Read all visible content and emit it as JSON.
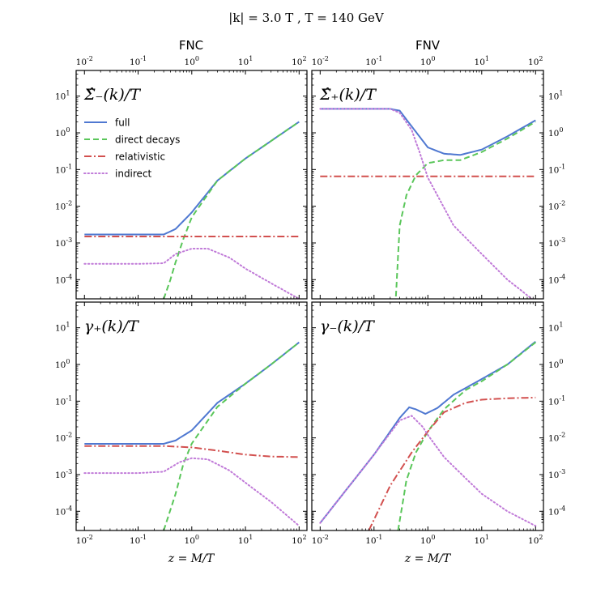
{
  "figure": {
    "title": "|k| = 3.0 T ,    T = 140 GeV",
    "column_titles": [
      "FNC",
      "FNV"
    ],
    "xlabel": "z = M/T",
    "x_ticks": [
      "10^-2",
      "10^-1",
      "10^0",
      "10^1",
      "10^2"
    ],
    "y_ticks": [
      "10^-4",
      "10^-3",
      "10^-2",
      "10^-1",
      "10^0",
      "10^1"
    ],
    "legend": [
      {
        "label": "full",
        "color": "#4f78d1",
        "style": "solid"
      },
      {
        "label": "direct decays",
        "color": "#5ac65a",
        "style": "dashed"
      },
      {
        "label": "relativistic",
        "color": "#d2504f",
        "style": "dashdot"
      },
      {
        "label": "indirect",
        "color": "#c07ad8",
        "style": "dotted"
      }
    ]
  },
  "chart_data": [
    {
      "type": "line",
      "panel": "FNC-top",
      "label": "Σ̂₋(k)/T",
      "xscale": "log",
      "yscale": "log",
      "xlim": [
        0.007,
        140
      ],
      "ylim": [
        3e-05,
        50
      ],
      "series": [
        {
          "name": "full",
          "points": [
            [
              0.01,
              0.0017
            ],
            [
              0.1,
              0.0017
            ],
            [
              0.3,
              0.0017
            ],
            [
              0.5,
              0.0024
            ],
            [
              1,
              0.0068
            ],
            [
              3,
              0.05
            ],
            [
              10,
              0.2
            ],
            [
              30,
              0.6
            ],
            [
              100,
              2.0
            ]
          ]
        },
        {
          "name": "direct decays",
          "points": [
            [
              0.3,
              3e-05
            ],
            [
              0.4,
              0.0001
            ],
            [
              0.5,
              0.0003
            ],
            [
              0.7,
              0.0013
            ],
            [
              1,
              0.005
            ],
            [
              3,
              0.05
            ],
            [
              10,
              0.2
            ],
            [
              30,
              0.6
            ],
            [
              100,
              2.0
            ]
          ]
        },
        {
          "name": "relativistic",
          "points": [
            [
              0.01,
              0.0015
            ],
            [
              1,
              0.0015
            ],
            [
              100,
              0.0015
            ]
          ]
        },
        {
          "name": "indirect",
          "points": [
            [
              0.01,
              0.00027
            ],
            [
              0.1,
              0.00027
            ],
            [
              0.3,
              0.00028
            ],
            [
              0.5,
              0.0005
            ],
            [
              1,
              0.0007
            ],
            [
              2,
              0.0007
            ],
            [
              5,
              0.0004
            ],
            [
              10,
              0.0002
            ],
            [
              30,
              8e-05
            ],
            [
              100,
              3e-05
            ]
          ]
        }
      ]
    },
    {
      "type": "line",
      "panel": "FNV-top",
      "label": "Σ̂₊(k)/T",
      "xscale": "log",
      "yscale": "log",
      "xlim": [
        0.007,
        140
      ],
      "ylim": [
        3e-05,
        50
      ],
      "series": [
        {
          "name": "full",
          "points": [
            [
              0.01,
              4.5
            ],
            [
              0.1,
              4.5
            ],
            [
              0.2,
              4.5
            ],
            [
              0.3,
              4.0
            ],
            [
              0.5,
              1.5
            ],
            [
              1,
              0.4
            ],
            [
              2,
              0.27
            ],
            [
              4,
              0.25
            ],
            [
              10,
              0.35
            ],
            [
              30,
              0.8
            ],
            [
              100,
              2.2
            ]
          ]
        },
        {
          "name": "direct decays",
          "points": [
            [
              0.25,
              2e-05
            ],
            [
              0.3,
              0.003
            ],
            [
              0.4,
              0.02
            ],
            [
              0.6,
              0.07
            ],
            [
              1,
              0.15
            ],
            [
              2,
              0.18
            ],
            [
              4,
              0.18
            ],
            [
              10,
              0.3
            ],
            [
              30,
              0.7
            ],
            [
              100,
              2.0
            ]
          ]
        },
        {
          "name": "relativistic",
          "points": [
            [
              0.01,
              0.065
            ],
            [
              100,
              0.065
            ]
          ]
        },
        {
          "name": "indirect",
          "points": [
            [
              0.01,
              4.5
            ],
            [
              0.2,
              4.5
            ],
            [
              0.3,
              3.5
            ],
            [
              0.5,
              1.2
            ],
            [
              0.7,
              0.3
            ],
            [
              1,
              0.06
            ],
            [
              3,
              0.003
            ],
            [
              10,
              0.0005
            ],
            [
              30,
              0.0001
            ],
            [
              100,
              2.5e-05
            ]
          ]
        }
      ]
    },
    {
      "type": "line",
      "panel": "FNC-bottom",
      "label": "γ₊(k)/T",
      "xscale": "log",
      "yscale": "log",
      "xlim": [
        0.007,
        140
      ],
      "ylim": [
        3e-05,
        50
      ],
      "series": [
        {
          "name": "full",
          "points": [
            [
              0.01,
              0.0069
            ],
            [
              0.1,
              0.0069
            ],
            [
              0.3,
              0.0069
            ],
            [
              0.5,
              0.0085
            ],
            [
              1,
              0.016
            ],
            [
              3,
              0.09
            ],
            [
              10,
              0.3
            ],
            [
              30,
              1.0
            ],
            [
              100,
              4.0
            ]
          ]
        },
        {
          "name": "direct decays",
          "points": [
            [
              0.3,
              3e-05
            ],
            [
              0.5,
              0.0003
            ],
            [
              0.7,
              0.002
            ],
            [
              1,
              0.007
            ],
            [
              3,
              0.07
            ],
            [
              10,
              0.3
            ],
            [
              30,
              1.0
            ],
            [
              100,
              4.0
            ]
          ]
        },
        {
          "name": "relativistic",
          "points": [
            [
              0.01,
              0.006
            ],
            [
              0.3,
              0.006
            ],
            [
              1,
              0.0055
            ],
            [
              3,
              0.0045
            ],
            [
              10,
              0.0035
            ],
            [
              30,
              0.0031
            ],
            [
              100,
              0.003
            ]
          ]
        },
        {
          "name": "indirect",
          "points": [
            [
              0.01,
              0.0011
            ],
            [
              0.1,
              0.0011
            ],
            [
              0.3,
              0.0012
            ],
            [
              0.6,
              0.0022
            ],
            [
              1,
              0.0028
            ],
            [
              2,
              0.0026
            ],
            [
              5,
              0.0013
            ],
            [
              10,
              0.0006
            ],
            [
              30,
              0.00018
            ],
            [
              100,
              4e-05
            ]
          ]
        }
      ]
    },
    {
      "type": "line",
      "panel": "FNV-bottom",
      "label": "γ₋(k)/T",
      "xscale": "log",
      "yscale": "log",
      "xlim": [
        0.007,
        140
      ],
      "ylim": [
        3e-05,
        50
      ],
      "series": [
        {
          "name": "full",
          "points": [
            [
              0.01,
              4.8e-05
            ],
            [
              0.1,
              0.0035
            ],
            [
              0.3,
              0.035
            ],
            [
              0.45,
              0.068
            ],
            [
              0.6,
              0.06
            ],
            [
              0.9,
              0.045
            ],
            [
              1.5,
              0.065
            ],
            [
              3,
              0.15
            ],
            [
              10,
              0.4
            ],
            [
              30,
              1.0
            ],
            [
              100,
              4.2
            ]
          ]
        },
        {
          "name": "direct decays",
          "points": [
            [
              0.28,
              3e-05
            ],
            [
              0.4,
              0.0007
            ],
            [
              0.6,
              0.004
            ],
            [
              1,
              0.015
            ],
            [
              2,
              0.06
            ],
            [
              5,
              0.2
            ],
            [
              10,
              0.35
            ],
            [
              30,
              1.0
            ],
            [
              100,
              4.0
            ]
          ]
        },
        {
          "name": "relativistic",
          "points": [
            [
              0.08,
              3e-05
            ],
            [
              0.2,
              0.0005
            ],
            [
              0.5,
              0.004
            ],
            [
              1,
              0.015
            ],
            [
              2,
              0.05
            ],
            [
              5,
              0.09
            ],
            [
              10,
              0.11
            ],
            [
              30,
              0.12
            ],
            [
              100,
              0.125
            ]
          ]
        },
        {
          "name": "indirect",
          "points": [
            [
              0.01,
              4.8e-05
            ],
            [
              0.1,
              0.0035
            ],
            [
              0.3,
              0.03
            ],
            [
              0.5,
              0.04
            ],
            [
              0.8,
              0.02
            ],
            [
              1,
              0.012
            ],
            [
              2,
              0.003
            ],
            [
              5,
              0.0008
            ],
            [
              10,
              0.0003
            ],
            [
              30,
              0.0001
            ],
            [
              100,
              4e-05
            ]
          ]
        }
      ]
    }
  ]
}
